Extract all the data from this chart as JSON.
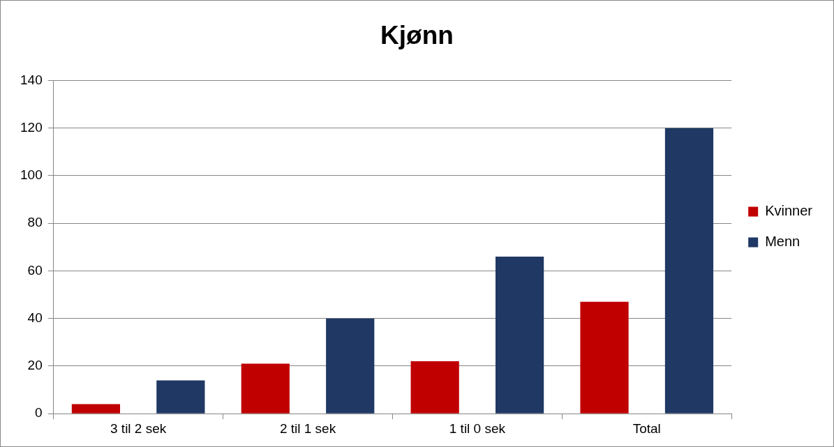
{
  "chart_data": {
    "type": "bar",
    "title": "Kjønn",
    "categories": [
      "3 til 2 sek",
      "2 til 1 sek",
      "1 til 0 sek",
      "Total"
    ],
    "series": [
      {
        "name": "Kvinner",
        "color": "#c00000",
        "values": [
          4,
          21,
          22,
          47
        ]
      },
      {
        "name": "Menn",
        "color": "#1f3864",
        "values": [
          14,
          40,
          66,
          120
        ]
      }
    ],
    "ylim": [
      0,
      140
    ],
    "yticks": [
      0,
      20,
      40,
      60,
      80,
      100,
      120,
      140
    ],
    "grid": "y",
    "legend": "right"
  }
}
